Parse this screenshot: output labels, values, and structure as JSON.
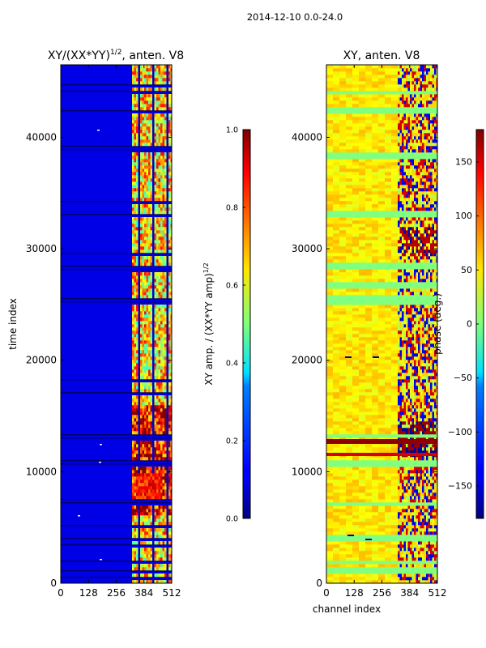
{
  "suptitle": "2014-12-10 0.0-24.0",
  "chart_data": [
    {
      "type": "heatmap",
      "title": "XY/(XX*YY)",
      "title_exponent": "1/2",
      "title_suffix": ", anten. V8",
      "xlabel": "",
      "ylabel": "time index",
      "xlim": [
        0,
        512
      ],
      "ylim": [
        0,
        46500
      ],
      "xticks": [
        0,
        128,
        256,
        384,
        512
      ],
      "yticks": [
        0,
        10000,
        20000,
        30000,
        40000
      ],
      "colorbar": {
        "label": "XY amp. / (XX*YY amp)",
        "label_exponent": "1/2",
        "range": [
          0.0,
          1.0
        ],
        "ticks": [
          "0.0",
          "0.2",
          "0.4",
          "0.6",
          "0.8",
          "1.0"
        ],
        "colormap": "jet"
      },
      "description": "amplitude ratio: low (~0.1) below channel ~320, high and structured (0.4-1.0) for channels ~320-512; dark horizontal gaps"
    },
    {
      "type": "heatmap",
      "title": "XY, anten. V8",
      "xlabel": "channel index",
      "ylabel": "",
      "xlim": [
        0,
        512
      ],
      "ylim": [
        0,
        46500
      ],
      "xticks": [
        0,
        128,
        256,
        384,
        512
      ],
      "yticks": [
        0,
        10000,
        20000,
        30000,
        40000
      ],
      "colorbar": {
        "label": "phase (deg.)",
        "range": [
          -180,
          180
        ],
        "ticks": [
          "150",
          "100",
          "50",
          "0",
          "−50",
          "−100",
          "−150"
        ],
        "colormap": "jet"
      },
      "description": "XY phase: mostly ~40-70 deg (yellow) for channels below ~320, strongly varying (-180..180) above; cyan horizontal bands near 0 deg"
    }
  ]
}
